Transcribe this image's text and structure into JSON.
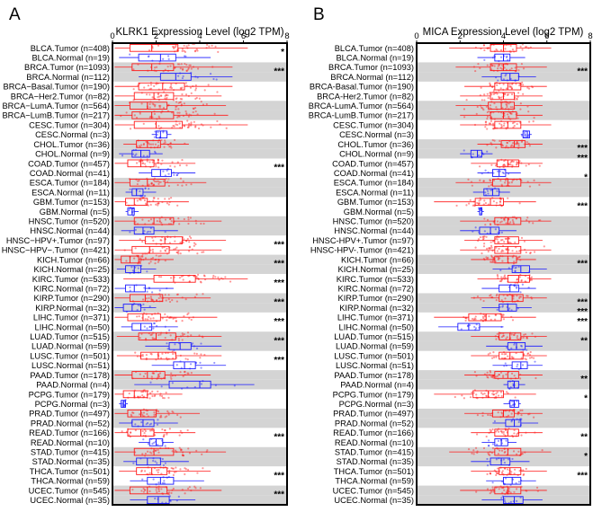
{
  "panels": [
    {
      "letter": "A",
      "title": "KLRK1 Expression Level (log2 TPM)",
      "ticks": [
        "0",
        "2",
        "4",
        "6",
        "8"
      ],
      "sig": [
        "*",
        "",
        "***",
        "",
        "",
        "",
        "",
        "",
        "",
        "",
        "",
        "",
        "***",
        "",
        "",
        "",
        "",
        "",
        "",
        "",
        "***",
        "",
        "***",
        "",
        "***",
        "",
        "***",
        "",
        "***",
        "",
        "***",
        "",
        "***",
        "",
        "",
        "",
        "",
        "",
        "",
        "",
        "***",
        "",
        "",
        "",
        "***",
        "",
        "***"
      ]
    },
    {
      "letter": "B",
      "title": "MICA Expression Level (log2 TPM)",
      "ticks": [
        "0",
        "2",
        "4",
        "6",
        "8"
      ],
      "sig": [
        "",
        "",
        "***",
        "",
        "",
        "",
        "",
        "",
        "",
        "",
        "***",
        "***",
        "",
        "*",
        "",
        "",
        "***",
        "",
        "",
        "",
        "",
        "",
        "***",
        "",
        "",
        "",
        "***",
        "***",
        "***",
        "",
        "**",
        "",
        "",
        "",
        "**",
        "",
        "*",
        "",
        "",
        "",
        "**",
        "",
        "*",
        "",
        "***",
        ""
      ]
    }
  ],
  "chart_data": [
    {
      "type": "box",
      "title": "KLRK1 Expression Level (log2 TPM)",
      "xlim": [
        0,
        8
      ],
      "categories": [
        "BLCA.Tumor (n=408)",
        "BLCA.Normal (n=19)",
        "BRCA.Tumor (n=1093)",
        "BRCA.Normal (n=112)",
        "BRCA−Basal.Tumor (n=190)",
        "BRCA−Her2.Tumor (n=82)",
        "BRCA−LumA.Tumor (n=564)",
        "BRCA−LumB.Tumor (n=217)",
        "CESC.Tumor (n=304)",
        "CESC.Normal (n=3)",
        "CHOL.Tumor (n=36)",
        "CHOL.Normal (n=9)",
        "COAD.Tumor (n=457)",
        "COAD.Normal (n=41)",
        "ESCA.Tumor (n=184)",
        "ESCA.Normal (n=11)",
        "GBM.Tumor (n=153)",
        "GBM.Normal (n=5)",
        "HNSC.Tumor (n=520)",
        "HNSC.Normal (n=44)",
        "HNSC−HPV+.Tumor (n=97)",
        "HNSC−HPV−.Tumor (n=421)",
        "KICH.Tumor (n=66)",
        "KICH.Normal (n=25)",
        "KIRC.Tumor (n=533)",
        "KIRC.Normal (n=72)",
        "KIRP.Tumor (n=290)",
        "KIRP.Normal (n=32)",
        "LIHC.Tumor (n=371)",
        "LIHC.Normal (n=50)",
        "LUAD.Tumor (n=515)",
        "LUAD.Normal (n=59)",
        "LUSC.Tumor (n=501)",
        "LUSC.Normal (n=51)",
        "PAAD.Tumor (n=178)",
        "PAAD.Normal (n=4)",
        "PCPG.Tumor (n=179)",
        "PCPG.Normal (n=3)",
        "PRAD.Tumor (n=497)",
        "PRAD.Normal (n=52)",
        "READ.Tumor (n=166)",
        "READ.Normal (n=10)",
        "STAD.Tumor (n=415)",
        "STAD.Normal (n=35)",
        "THCA.Tumor (n=501)",
        "THCA.Normal (n=59)",
        "UCEC.Tumor (n=545)",
        "UCEC.Normal (n=35)"
      ],
      "series": [
        {
          "values": [
            [
              0.1,
              0.8,
              1.8,
              3.0,
              6.2
            ],
            [
              0.3,
              1.2,
              2.2,
              2.9,
              4.5
            ],
            [
              0.1,
              0.9,
              1.8,
              2.8,
              5.5
            ],
            [
              1.2,
              2.2,
              2.9,
              3.6,
              5.5
            ],
            [
              0.1,
              1.2,
              2.3,
              3.3,
              5.5
            ],
            [
              0.1,
              1.0,
              1.9,
              2.8,
              5.0
            ],
            [
              0.1,
              0.8,
              1.6,
              2.5,
              5.2
            ],
            [
              0.1,
              0.9,
              1.8,
              2.8,
              5.3
            ],
            [
              0.1,
              1.0,
              2.0,
              3.2,
              6.2
            ],
            [
              1.8,
              2.0,
              2.2,
              2.5,
              2.7
            ],
            [
              0.5,
              1.1,
              1.6,
              2.2,
              3.5
            ],
            [
              0.3,
              0.9,
              1.3,
              1.7,
              2.3
            ],
            [
              0.1,
              0.7,
              1.3,
              1.9,
              3.8
            ],
            [
              1.2,
              1.8,
              2.2,
              2.7,
              3.8
            ],
            [
              0.1,
              0.8,
              1.6,
              2.4,
              4.3
            ],
            [
              0.6,
              0.9,
              1.1,
              1.4,
              2.0
            ],
            [
              0.1,
              0.6,
              1.0,
              1.6,
              3.5
            ],
            [
              0.6,
              0.7,
              0.9,
              1.0,
              1.2
            ],
            [
              0.1,
              1.0,
              1.9,
              2.8,
              5.0
            ],
            [
              0.4,
              1.0,
              1.4,
              1.9,
              3.0
            ],
            [
              0.3,
              1.5,
              2.4,
              3.2,
              5.2
            ],
            [
              0.1,
              0.9,
              1.7,
              2.6,
              5.0
            ],
            [
              0.1,
              0.4,
              0.8,
              1.2,
              2.8
            ],
            [
              0.2,
              0.6,
              1.0,
              1.3,
              2.0
            ],
            [
              0.5,
              1.9,
              2.8,
              3.8,
              6.2
            ],
            [
              0.1,
              0.6,
              1.0,
              1.5,
              2.8
            ],
            [
              0.1,
              0.8,
              1.5,
              2.3,
              4.5
            ],
            [
              0.1,
              0.5,
              0.9,
              1.3,
              2.0
            ],
            [
              0.1,
              0.7,
              1.4,
              2.2,
              4.8
            ],
            [
              0.4,
              0.9,
              1.3,
              1.8,
              3.0
            ],
            [
              0.2,
              1.2,
              2.0,
              2.9,
              5.0
            ],
            [
              1.5,
              2.6,
              3.1,
              3.6,
              5.0
            ],
            [
              0.2,
              1.3,
              2.1,
              2.9,
              5.0
            ],
            [
              1.8,
              2.8,
              3.3,
              3.8,
              5.2
            ],
            [
              0.1,
              0.9,
              1.6,
              2.4,
              4.5
            ],
            [
              1.0,
              2.6,
              4.0,
              4.5,
              6.5
            ],
            [
              0.1,
              0.5,
              1.0,
              1.6,
              3.2
            ],
            [
              0.3,
              0.4,
              0.5,
              0.6,
              0.7
            ],
            [
              0.1,
              0.7,
              1.3,
              2.0,
              4.0
            ],
            [
              0.3,
              0.9,
              1.4,
              1.9,
              3.0
            ],
            [
              0.1,
              0.7,
              1.3,
              1.9,
              3.8
            ],
            [
              1.2,
              1.7,
              2.0,
              2.3,
              2.8
            ],
            [
              0.1,
              1.0,
              1.9,
              2.8,
              5.2
            ],
            [
              0.5,
              1.1,
              1.6,
              2.2,
              3.5
            ],
            [
              0.3,
              1.1,
              1.8,
              2.5,
              4.5
            ],
            [
              0.8,
              1.6,
              2.2,
              2.8,
              4.2
            ],
            [
              0.1,
              0.8,
              1.6,
              2.5,
              5.0
            ],
            [
              0.8,
              1.6,
              2.1,
              2.6,
              3.8
            ]
          ]
        }
      ]
    },
    {
      "type": "box",
      "title": "MICA Expression Level (log2 TPM)",
      "xlim": [
        0,
        8
      ],
      "categories": [
        "BLCA.Tumor (n=408)",
        "BLCA.Normal (n=19)",
        "BRCA.Tumor (n=1093)",
        "BRCA.Normal (n=112)",
        "BRCA-Basal.Tumor (n=190)",
        "BRCA-Her2.Tumor (n=82)",
        "BRCA-LumA.Tumor (n=564)",
        "BRCA-LumB.Tumor (n=217)",
        "CESC.Tumor (n=304)",
        "CESC.Normal (n=3)",
        "CHOL.Tumor (n=36)",
        "CHOL.Normal (n=9)",
        "COAD.Tumor (n=457)",
        "COAD.Normal (n=41)",
        "ESCA.Tumor (n=184)",
        "ESCA.Normal (n=11)",
        "GBM.Tumor (n=153)",
        "GBM.Normal (n=5)",
        "HNSC.Tumor (n=520)",
        "HNSC.Normal (n=44)",
        "HNSC-HPV+.Tumor (n=97)",
        "HNSC-HPV-.Tumor (n=421)",
        "KICH.Tumor (n=66)",
        "KICH.Normal (n=25)",
        "KIRC.Tumor (n=533)",
        "KIRC.Normal (n=72)",
        "KIRP.Tumor (n=290)",
        "KIRP.Normal (n=32)",
        "LIHC.Tumor (n=371)",
        "LIHC.Normal (n=50)",
        "LUAD.Tumor (n=515)",
        "LUAD.Normal (n=59)",
        "LUSC.Tumor (n=501)",
        "LUSC.Normal (n=51)",
        "PAAD.Tumor (n=178)",
        "PAAD.Normal (n=4)",
        "PCPG.Tumor (n=179)",
        "PCPG.Normal (n=3)",
        "PRAD.Tumor (n=497)",
        "PRAD.Normal (n=52)",
        "READ.Tumor (n=166)",
        "READ.Normal (n=10)",
        "STAD.Tumor (n=415)",
        "STAD.Normal (n=35)",
        "THCA.Tumor (n=501)",
        "THCA.Normal (n=59)",
        "UCEC.Tumor (n=545)",
        "UCEC.Normal (n=35)"
      ],
      "series": [
        {
          "values": [
            [
              1.5,
              3.4,
              4.0,
              4.6,
              6.2
            ],
            [
              2.8,
              3.6,
              4.0,
              4.3,
              5.0
            ],
            [
              1.8,
              3.4,
              4.0,
              4.6,
              6.0
            ],
            [
              3.0,
              3.9,
              4.3,
              4.7,
              5.5
            ],
            [
              2.2,
              3.6,
              4.2,
              4.8,
              6.0
            ],
            [
              2.0,
              3.4,
              4.0,
              4.5,
              5.8
            ],
            [
              1.8,
              3.3,
              3.9,
              4.5,
              5.8
            ],
            [
              2.0,
              3.4,
              4.0,
              4.6,
              5.8
            ],
            [
              2.0,
              3.6,
              4.2,
              4.8,
              6.2
            ],
            [
              4.8,
              4.9,
              5.1,
              5.2,
              5.3
            ],
            [
              2.8,
              3.9,
              4.5,
              5.0,
              5.8
            ],
            [
              2.0,
              2.5,
              2.8,
              3.0,
              3.5
            ],
            [
              2.5,
              3.7,
              4.2,
              4.7,
              5.8
            ],
            [
              2.8,
              3.5,
              3.8,
              4.1,
              4.8
            ],
            [
              1.8,
              3.5,
              4.2,
              4.8,
              6.2
            ],
            [
              2.6,
              3.1,
              3.5,
              3.8,
              4.3
            ],
            [
              0.8,
              2.7,
              3.4,
              4.0,
              5.5
            ],
            [
              2.8,
              2.9,
              3.0,
              3.0,
              3.1
            ],
            [
              2.0,
              3.6,
              4.2,
              4.8,
              6.2
            ],
            [
              2.0,
              2.9,
              3.4,
              3.8,
              4.6
            ],
            [
              2.2,
              3.6,
              4.2,
              4.7,
              5.8
            ],
            [
              2.0,
              3.6,
              4.2,
              4.8,
              6.2
            ],
            [
              2.5,
              3.6,
              4.2,
              4.6,
              5.5
            ],
            [
              3.5,
              4.4,
              4.8,
              5.2,
              6.0
            ],
            [
              2.8,
              4.2,
              4.7,
              5.2,
              6.2
            ],
            [
              3.0,
              3.8,
              4.3,
              4.7,
              5.5
            ],
            [
              2.5,
              3.8,
              4.4,
              4.9,
              6.0
            ],
            [
              3.0,
              3.8,
              4.2,
              4.6,
              5.3
            ],
            [
              0.8,
              2.4,
              3.2,
              3.9,
              5.5
            ],
            [
              1.0,
              1.9,
              2.4,
              2.9,
              4.0
            ],
            [
              2.5,
              3.8,
              4.3,
              4.8,
              6.0
            ],
            [
              3.2,
              4.2,
              4.6,
              5.0,
              5.8
            ],
            [
              2.5,
              3.8,
              4.3,
              4.9,
              6.0
            ],
            [
              3.5,
              4.4,
              4.8,
              5.1,
              5.8
            ],
            [
              2.2,
              3.6,
              4.2,
              4.7,
              5.8
            ],
            [
              4.0,
              4.2,
              4.5,
              4.7,
              5.0
            ],
            [
              0.8,
              2.6,
              3.3,
              4.0,
              5.5
            ],
            [
              4.0,
              4.3,
              4.5,
              4.7,
              4.8
            ],
            [
              2.2,
              3.5,
              4.0,
              4.5,
              5.8
            ],
            [
              3.5,
              4.1,
              4.5,
              4.8,
              5.6
            ],
            [
              2.5,
              3.6,
              4.2,
              4.7,
              5.8
            ],
            [
              3.0,
              3.6,
              3.9,
              4.2,
              4.6
            ],
            [
              1.5,
              3.6,
              4.2,
              4.8,
              6.2
            ],
            [
              2.5,
              3.4,
              3.9,
              4.3,
              5.2
            ],
            [
              2.5,
              3.8,
              4.3,
              4.8,
              6.0
            ],
            [
              3.2,
              4.0,
              4.4,
              4.8,
              5.5
            ],
            [
              2.0,
              3.6,
              4.2,
              4.8,
              6.0
            ],
            [
              3.0,
              4.0,
              4.5,
              4.9,
              5.8
            ]
          ]
        }
      ]
    }
  ]
}
